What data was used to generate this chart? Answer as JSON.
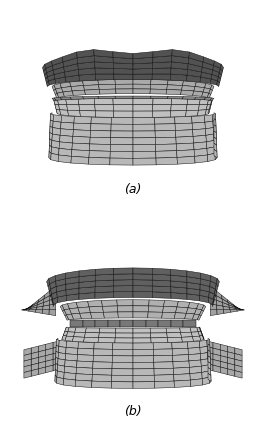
{
  "bg_color": "#ffffff",
  "edge_color": "#111111",
  "label_a": "(a)",
  "label_b": "(b)",
  "label_fontsize": 9,
  "figsize": [
    2.66,
    4.42
  ],
  "dpi": 100,
  "lw": 0.35
}
